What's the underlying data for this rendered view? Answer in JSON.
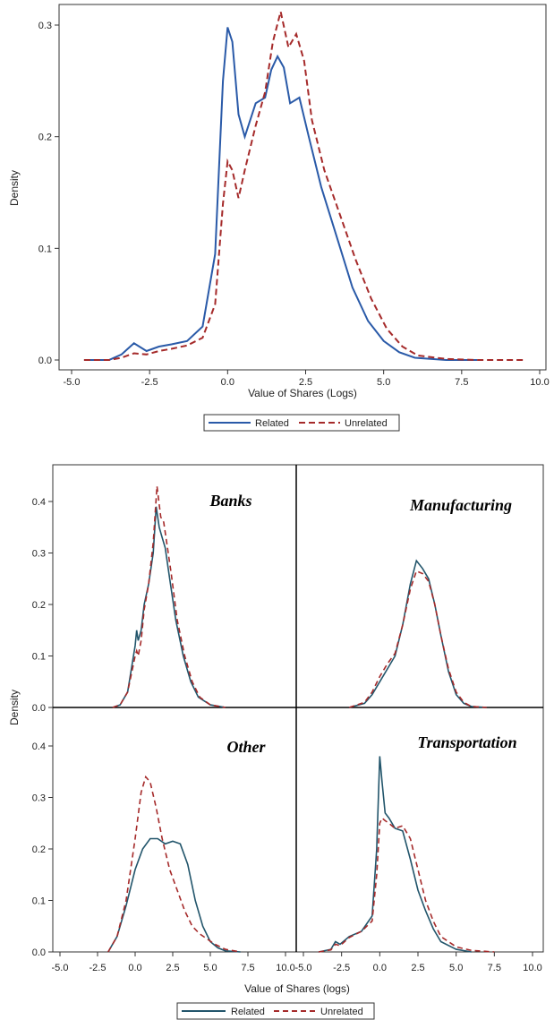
{
  "colors": {
    "related": "#2a5aa8",
    "unrelated": "#a52a2a",
    "related_panels": "#22556b",
    "axis": "#333333"
  },
  "chart_data": [
    {
      "type": "line",
      "title": "",
      "xlabel": "Value of Shares (Logs)",
      "ylabel": "Density",
      "xlim": [
        -5.0,
        10.0
      ],
      "ylim": [
        0,
        0.32
      ],
      "xticks": [
        "-5.0",
        "-2.5",
        "0.0",
        "2.5",
        "5.0",
        "7.5",
        "10.0"
      ],
      "yticks": [
        "0.0",
        "0.1",
        "0.2",
        "0.3"
      ],
      "legend": {
        "placement": "bottom",
        "entries": [
          "Related",
          "Unrelated"
        ]
      },
      "series": [
        {
          "name": "Related",
          "style": "solid",
          "x": [
            -4.6,
            -3.8,
            -3.4,
            -3.0,
            -2.6,
            -2.2,
            -1.8,
            -1.3,
            -0.8,
            -0.4,
            -0.15,
            0.0,
            0.15,
            0.35,
            0.55,
            0.9,
            1.2,
            1.4,
            1.6,
            1.8,
            2.0,
            2.3,
            2.6,
            3.0,
            3.5,
            4.0,
            4.5,
            5.0,
            5.5,
            6.0,
            7.0,
            8.0
          ],
          "y": [
            0.0,
            0.0,
            0.005,
            0.015,
            0.008,
            0.012,
            0.014,
            0.017,
            0.03,
            0.095,
            0.25,
            0.298,
            0.285,
            0.22,
            0.2,
            0.23,
            0.235,
            0.26,
            0.272,
            0.262,
            0.23,
            0.235,
            0.2,
            0.155,
            0.11,
            0.065,
            0.035,
            0.017,
            0.007,
            0.002,
            0.0,
            0.0
          ]
        },
        {
          "name": "Unrelated",
          "style": "dashed",
          "x": [
            -4.6,
            -3.8,
            -3.4,
            -3.0,
            -2.6,
            -2.2,
            -1.8,
            -1.3,
            -0.8,
            -0.4,
            -0.15,
            0.0,
            0.15,
            0.35,
            0.55,
            0.9,
            1.2,
            1.45,
            1.7,
            1.95,
            2.2,
            2.45,
            2.7,
            3.1,
            3.6,
            4.1,
            4.6,
            5.1,
            5.6,
            6.1,
            7.0,
            8.0,
            9.5
          ],
          "y": [
            0.0,
            0.0,
            0.002,
            0.006,
            0.005,
            0.008,
            0.01,
            0.013,
            0.02,
            0.05,
            0.14,
            0.178,
            0.17,
            0.145,
            0.17,
            0.21,
            0.24,
            0.285,
            0.312,
            0.28,
            0.292,
            0.268,
            0.215,
            0.17,
            0.13,
            0.09,
            0.055,
            0.028,
            0.012,
            0.004,
            0.001,
            0.0,
            0.0
          ]
        }
      ]
    },
    {
      "type": "line",
      "xlabel": "Value of Shares (logs)",
      "ylabel": "Density",
      "xlim": [
        -5.0,
        10.0
      ],
      "ylim": [
        0,
        0.45
      ],
      "xticks": [
        "-5.0",
        "-2.5",
        "0.0",
        "2.5",
        "5.0",
        "7.5",
        "10.0"
      ],
      "yticks": [
        "0.0",
        "0.1",
        "0.2",
        "0.3",
        "0.4"
      ],
      "legend": {
        "placement": "bottom",
        "entries": [
          "Related",
          "Unrelated"
        ]
      },
      "panels": [
        {
          "title": "Banks",
          "series": [
            {
              "name": "Related",
              "x": [
                -1.5,
                -1.0,
                -0.5,
                0.0,
                0.1,
                0.2,
                0.4,
                0.6,
                0.9,
                1.2,
                1.4,
                1.6,
                1.8,
                2.0,
                2.3,
                2.7,
                3.2,
                3.7,
                4.2,
                5.0,
                6.0
              ],
              "y": [
                0.0,
                0.005,
                0.03,
                0.12,
                0.15,
                0.13,
                0.15,
                0.2,
                0.24,
                0.3,
                0.39,
                0.35,
                0.33,
                0.31,
                0.25,
                0.17,
                0.1,
                0.05,
                0.02,
                0.005,
                0.0
              ]
            },
            {
              "name": "Unrelated",
              "x": [
                -1.5,
                -1.0,
                -0.5,
                0.0,
                0.1,
                0.2,
                0.4,
                0.6,
                0.9,
                1.2,
                1.45,
                1.7,
                1.9,
                2.1,
                2.4,
                2.8,
                3.3,
                3.8,
                4.3,
                5.0,
                6.0
              ],
              "y": [
                0.0,
                0.005,
                0.03,
                0.1,
                0.11,
                0.1,
                0.13,
                0.19,
                0.24,
                0.32,
                0.43,
                0.37,
                0.36,
                0.32,
                0.26,
                0.17,
                0.1,
                0.05,
                0.02,
                0.005,
                0.0
              ]
            }
          ]
        },
        {
          "title": "Manufacturing",
          "series": [
            {
              "name": "Related",
              "x": [
                -2.0,
                -1.0,
                -0.5,
                0.0,
                0.5,
                1.0,
                1.5,
                2.0,
                2.4,
                2.8,
                3.2,
                3.6,
                4.0,
                4.5,
                5.0,
                5.5,
                6.0,
                7.0
              ],
              "y": [
                0.0,
                0.008,
                0.025,
                0.05,
                0.075,
                0.1,
                0.16,
                0.24,
                0.285,
                0.27,
                0.25,
                0.2,
                0.14,
                0.07,
                0.025,
                0.008,
                0.002,
                0.0
              ]
            },
            {
              "name": "Unrelated",
              "x": [
                -2.0,
                -1.0,
                -0.5,
                0.0,
                0.5,
                1.0,
                1.5,
                2.0,
                2.4,
                2.8,
                3.2,
                3.6,
                4.0,
                4.5,
                5.0,
                5.5,
                6.0,
                7.0
              ],
              "y": [
                0.0,
                0.01,
                0.03,
                0.06,
                0.085,
                0.105,
                0.16,
                0.23,
                0.265,
                0.26,
                0.245,
                0.2,
                0.14,
                0.075,
                0.03,
                0.01,
                0.002,
                0.0
              ]
            }
          ]
        },
        {
          "title": "Other",
          "series": [
            {
              "name": "Related",
              "x": [
                -1.8,
                -1.2,
                -0.6,
                0.0,
                0.5,
                1.0,
                1.5,
                2.0,
                2.5,
                3.0,
                3.5,
                4.0,
                4.5,
                5.0,
                5.5,
                6.0,
                7.0
              ],
              "y": [
                0.0,
                0.03,
                0.09,
                0.16,
                0.2,
                0.22,
                0.22,
                0.21,
                0.215,
                0.21,
                0.17,
                0.1,
                0.05,
                0.02,
                0.008,
                0.002,
                0.0
              ]
            },
            {
              "name": "Unrelated",
              "x": [
                -1.8,
                -1.2,
                -0.6,
                0.0,
                0.4,
                0.7,
                1.0,
                1.4,
                1.8,
                2.3,
                2.8,
                3.3,
                3.8,
                4.3,
                4.8,
                5.3,
                6.0,
                7.0
              ],
              "y": [
                0.0,
                0.03,
                0.1,
                0.22,
                0.31,
                0.34,
                0.33,
                0.28,
                0.22,
                0.16,
                0.12,
                0.08,
                0.05,
                0.035,
                0.025,
                0.015,
                0.005,
                0.0
              ]
            }
          ]
        },
        {
          "title": "Transportation",
          "series": [
            {
              "name": "Related",
              "x": [
                -4.0,
                -3.2,
                -2.9,
                -2.6,
                -2.0,
                -1.2,
                -0.5,
                -0.2,
                0.0,
                0.15,
                0.35,
                0.6,
                1.0,
                1.5,
                2.0,
                2.5,
                3.0,
                3.5,
                4.0,
                5.0,
                6.0
              ],
              "y": [
                0.0,
                0.005,
                0.02,
                0.015,
                0.03,
                0.04,
                0.07,
                0.2,
                0.38,
                0.33,
                0.27,
                0.26,
                0.24,
                0.235,
                0.18,
                0.12,
                0.08,
                0.045,
                0.02,
                0.005,
                0.0
              ]
            },
            {
              "name": "Unrelated",
              "x": [
                -4.0,
                -3.2,
                -2.9,
                -2.6,
                -2.0,
                -1.2,
                -0.5,
                -0.2,
                0.0,
                0.15,
                0.35,
                0.6,
                1.0,
                1.5,
                2.0,
                2.5,
                3.0,
                3.5,
                4.0,
                5.0,
                6.0,
                7.5
              ],
              "y": [
                0.0,
                0.004,
                0.015,
                0.012,
                0.028,
                0.04,
                0.06,
                0.15,
                0.25,
                0.26,
                0.255,
                0.25,
                0.24,
                0.245,
                0.22,
                0.16,
                0.1,
                0.06,
                0.03,
                0.01,
                0.003,
                0.0
              ]
            }
          ]
        }
      ]
    }
  ]
}
